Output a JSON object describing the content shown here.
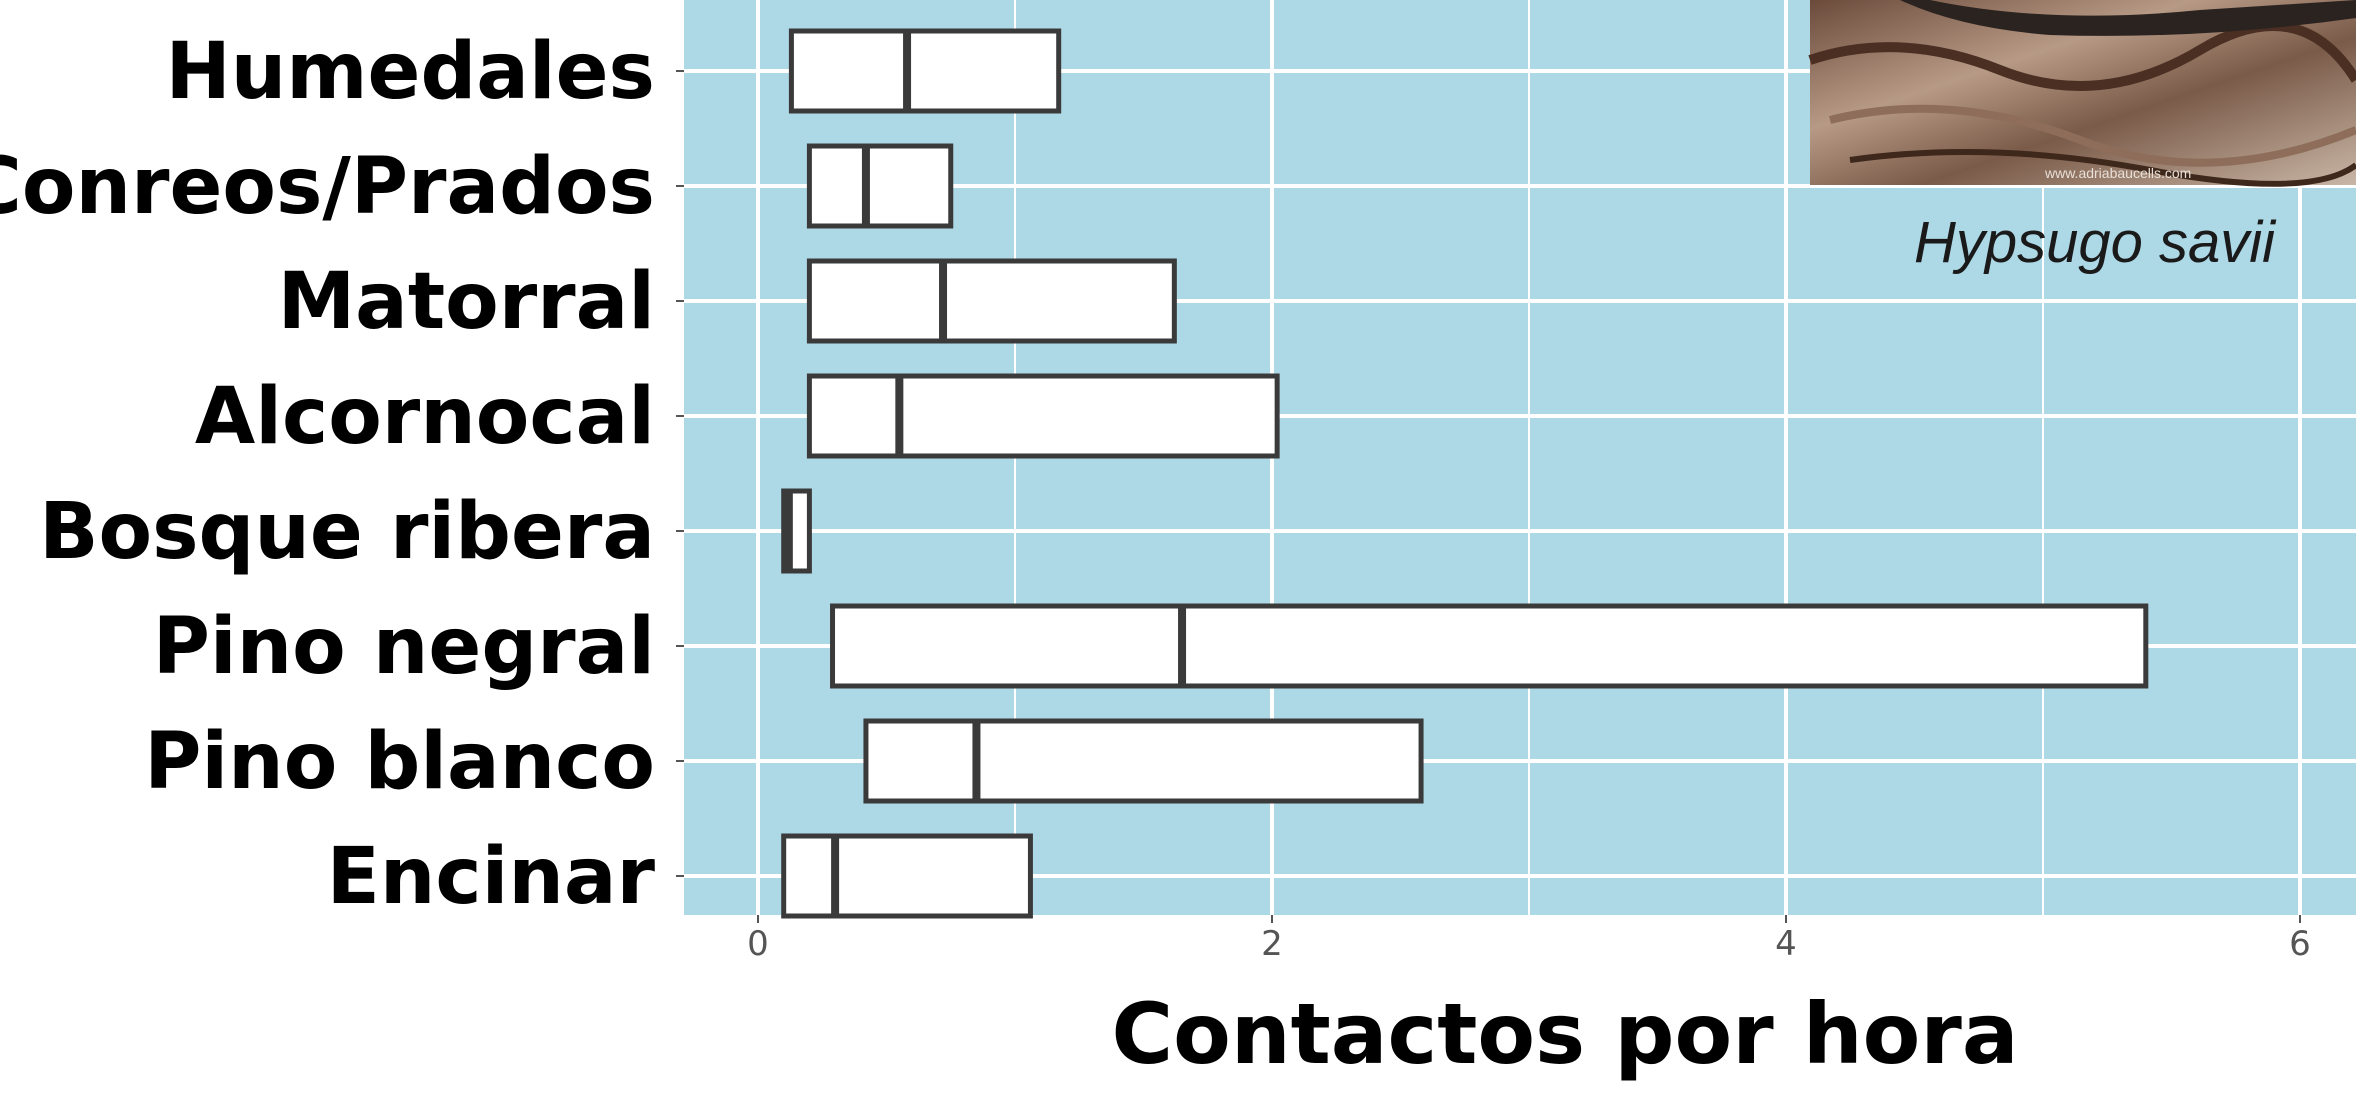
{
  "chart_data": {
    "type": "boxplot",
    "orientation": "horizontal",
    "categories": [
      "Humedales",
      "Conreos/Prados",
      "Matorral",
      "Alcornocal",
      "Bosque ribera",
      "Pino negral",
      "Pino blanco",
      "Encinar"
    ],
    "series": [
      {
        "boxes": [
          {
            "q1": 0.13,
            "median": 0.58,
            "q3": 1.17
          },
          {
            "q1": 0.2,
            "median": 0.42,
            "q3": 0.75
          },
          {
            "q1": 0.2,
            "median": 0.72,
            "q3": 1.62
          },
          {
            "q1": 0.2,
            "median": 0.55,
            "q3": 2.02
          },
          {
            "q1": 0.1,
            "median": 0.12,
            "q3": 0.2
          },
          {
            "q1": 0.29,
            "median": 1.65,
            "q3": 5.4
          },
          {
            "q1": 0.42,
            "median": 0.85,
            "q3": 2.58
          },
          {
            "q1": 0.1,
            "median": 0.3,
            "q3": 1.06
          }
        ]
      }
    ],
    "xlabel": "Contactos por hora",
    "ylabel": "",
    "xlim": [
      -0.3,
      6.2
    ],
    "xticks": [
      0,
      2,
      4,
      6
    ],
    "grid": true,
    "legend": "none",
    "annotation": "Hypsugo savii",
    "image_credit": "www.adriabaucells.com"
  },
  "colors": {
    "panel": "#add8e6",
    "grid": "#ffffff",
    "box_fill": "#ffffff",
    "box_stroke": "#3a3a3a"
  }
}
